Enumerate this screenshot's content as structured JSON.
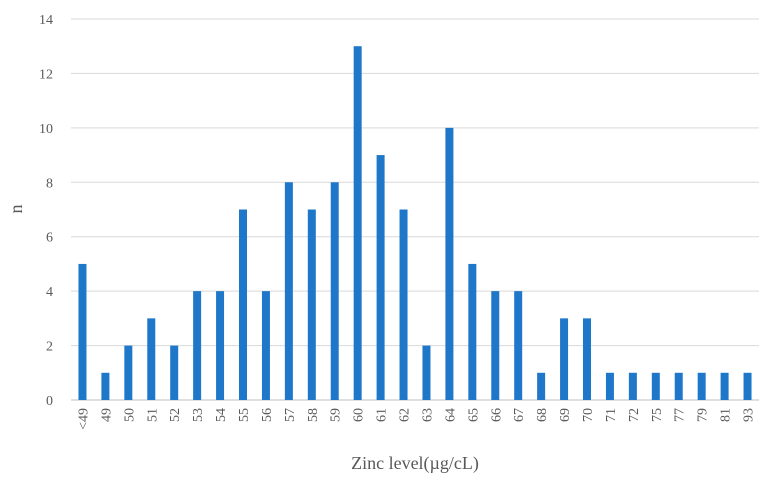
{
  "chart_data": {
    "type": "bar",
    "title": "",
    "xlabel": "Zinc level(µg/cL)",
    "ylabel": "n",
    "ylim": [
      0,
      14
    ],
    "yticks": [
      0,
      2,
      4,
      6,
      8,
      10,
      12,
      14
    ],
    "grid": true,
    "bar_color": "#1f77c9",
    "categories": [
      "<49",
      "49",
      "50",
      "51",
      "52",
      "53",
      "54",
      "55",
      "56",
      "57",
      "58",
      "59",
      "60",
      "61",
      "62",
      "63",
      "64",
      "65",
      "66",
      "67",
      "68",
      "69",
      "70",
      "71",
      "72",
      "75",
      "77",
      "79",
      "81",
      "93"
    ],
    "values": [
      5,
      1,
      2,
      3,
      2,
      4,
      4,
      7,
      4,
      8,
      7,
      8,
      13,
      9,
      7,
      2,
      10,
      5,
      4,
      4,
      1,
      3,
      3,
      1,
      1,
      1,
      1,
      1,
      1,
      1
    ]
  }
}
